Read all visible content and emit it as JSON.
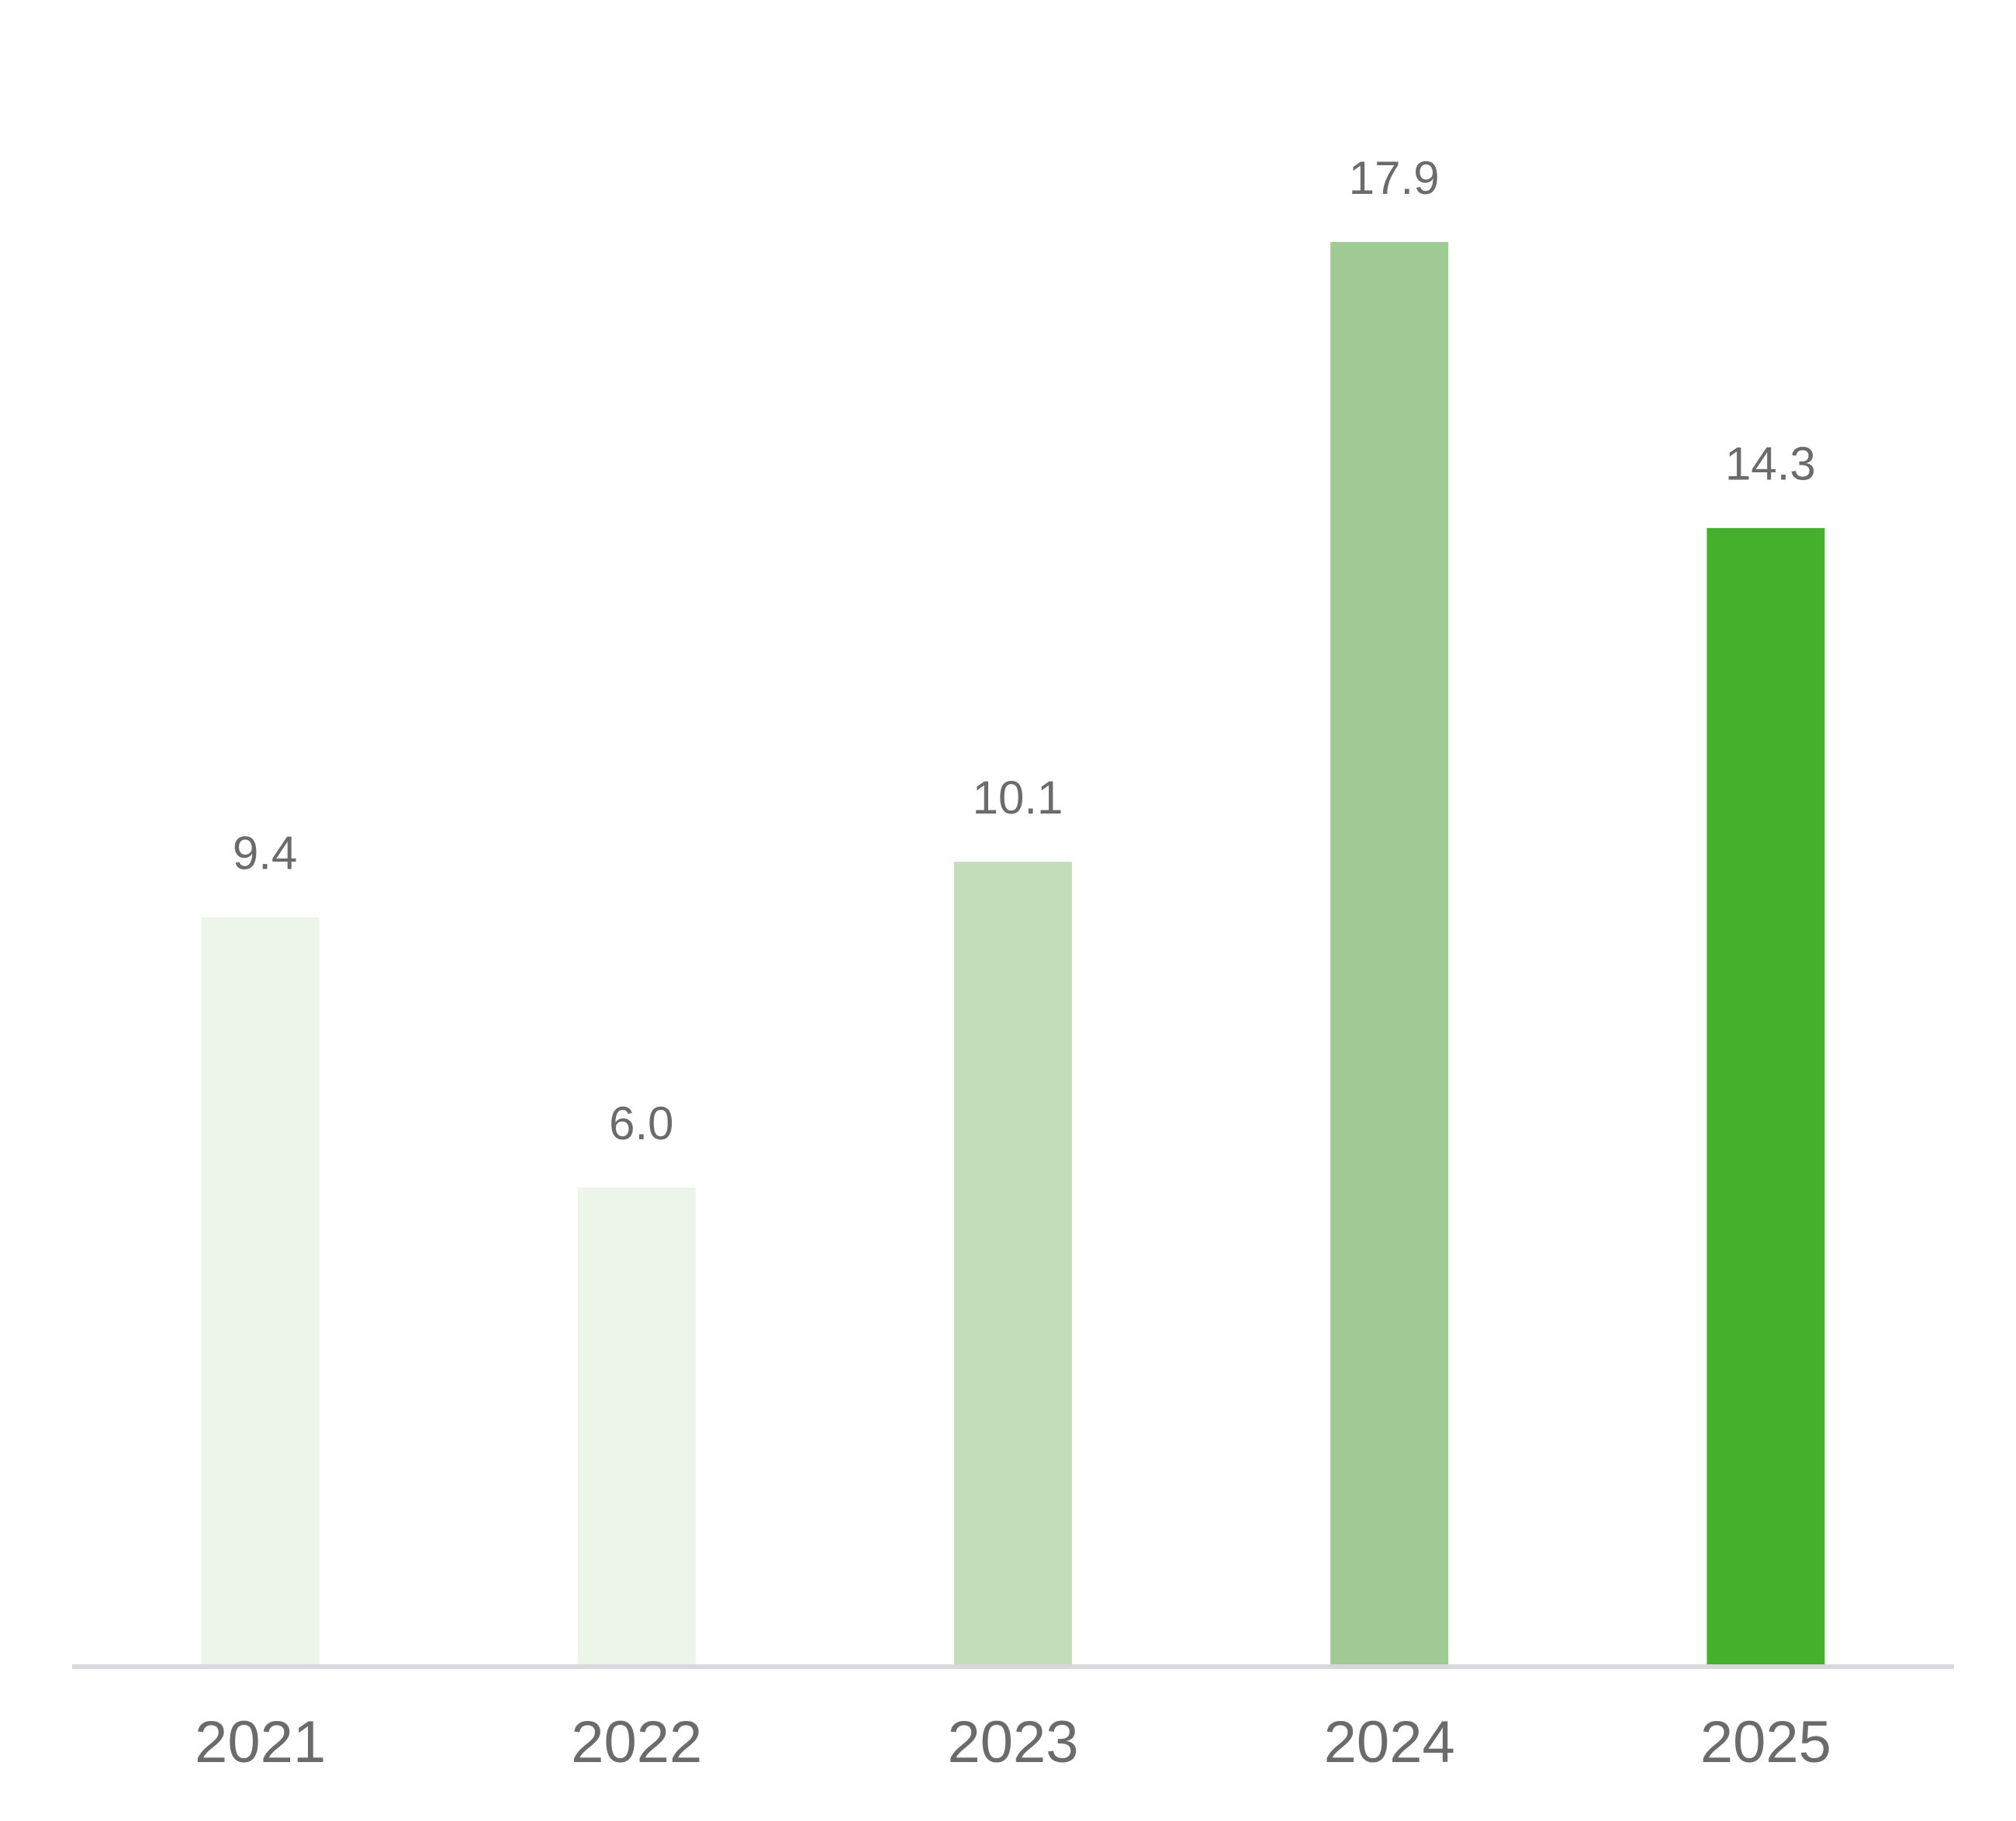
{
  "chart_data": {
    "type": "bar",
    "categories": [
      "2021",
      "2022",
      "2023",
      "2024",
      "2025"
    ],
    "values": [
      9.4,
      6.0,
      10.1,
      17.9,
      14.3
    ],
    "value_labels": [
      "9.4",
      "6.0",
      "10.1",
      "17.9",
      "14.3"
    ],
    "colors": [
      "#edf5ea",
      "#edf5ea",
      "#c3ddb9",
      "#a0ca94",
      "#45b02c"
    ]
  }
}
